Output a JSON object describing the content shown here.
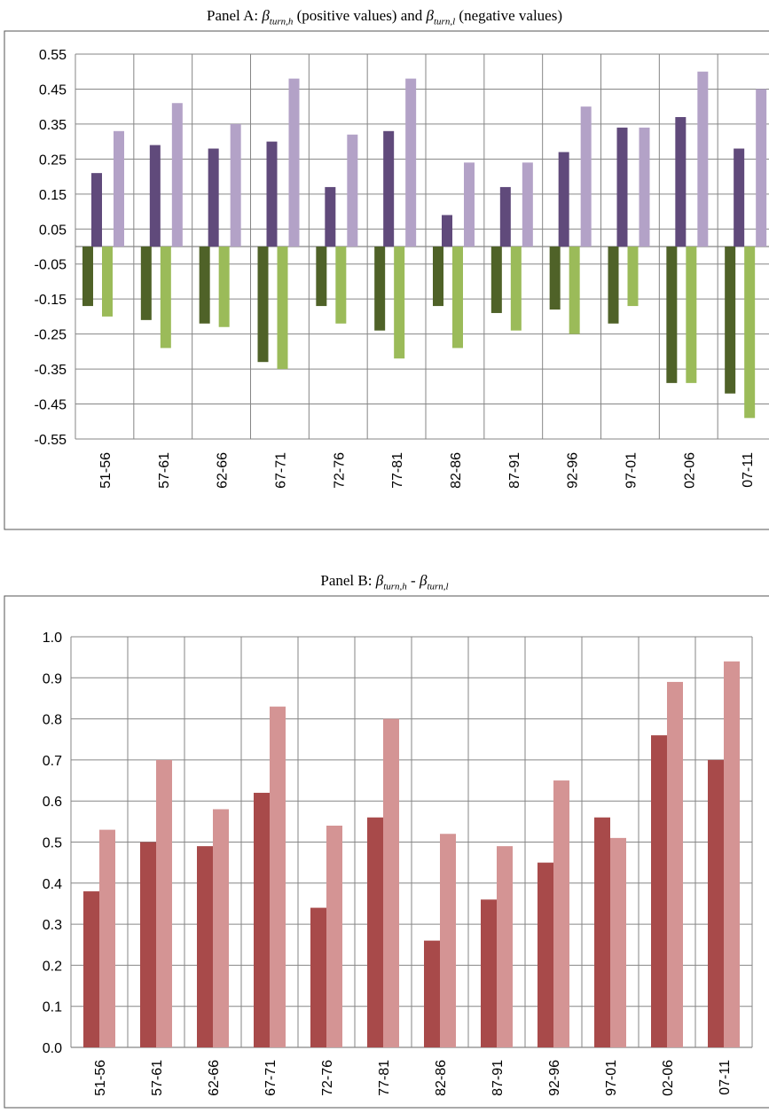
{
  "panels": [
    {
      "title_prefix": "Panel A: ",
      "title_parts": [
        {
          "sym": "β",
          "sub": "turn,h"
        },
        {
          "text": " (positive values) and "
        },
        {
          "sym": "β",
          "sub": "turn,l"
        },
        {
          "text": " (negative values)"
        }
      ]
    },
    {
      "title_prefix": "Panel B: ",
      "title_parts": [
        {
          "sym": "β",
          "sub": "turn,h"
        },
        {
          "text": " - "
        },
        {
          "sym": "β",
          "sub": "turn,l"
        }
      ]
    }
  ],
  "chart_data": [
    {
      "type": "bar",
      "title": "Panel A: βturn,h (positive values) and βturn,l (negative values)",
      "categories": [
        "51-56",
        "57-61",
        "62-66",
        "67-71",
        "72-76",
        "77-81",
        "82-86",
        "87-91",
        "92-96",
        "97-01",
        "02-06",
        "07-11"
      ],
      "ylim": [
        -0.55,
        0.55
      ],
      "yticks": [
        "0.55",
        "0.45",
        "0.35",
        "0.25",
        "0.15",
        "0.05",
        "-0.05",
        "-0.15",
        "-0.25",
        "-0.35",
        "-0.45",
        "-0.55"
      ],
      "grid": true,
      "series": [
        {
          "color": "#4f6228",
          "values": [
            -0.17,
            -0.21,
            -0.22,
            -0.33,
            -0.17,
            -0.24,
            -0.17,
            -0.19,
            -0.18,
            -0.22,
            -0.39,
            -0.42
          ]
        },
        {
          "color": "#9bbb59",
          "values": [
            -0.2,
            -0.29,
            -0.23,
            -0.35,
            -0.22,
            -0.32,
            -0.29,
            -0.24,
            -0.25,
            -0.17,
            -0.39,
            -0.49
          ]
        },
        {
          "color": "#604a7b",
          "values": [
            0.21,
            0.29,
            0.28,
            0.3,
            0.17,
            0.33,
            0.09,
            0.17,
            0.27,
            0.34,
            0.37,
            0.28
          ]
        },
        {
          "color": "#b3a2c7",
          "values": [
            0.33,
            0.41,
            0.35,
            0.48,
            0.32,
            0.48,
            0.24,
            0.24,
            0.4,
            0.34,
            0.5,
            0.45
          ]
        }
      ]
    },
    {
      "type": "bar",
      "title": "Panel B: βturn,h - βturn,l",
      "categories": [
        "51-56",
        "57-61",
        "62-66",
        "67-71",
        "72-76",
        "77-81",
        "82-86",
        "87-91",
        "92-96",
        "97-01",
        "02-06",
        "07-11"
      ],
      "ylim": [
        0.0,
        1.0
      ],
      "yticks": [
        "1.0",
        "0.9",
        "0.8",
        "0.7",
        "0.6",
        "0.5",
        "0.4",
        "0.3",
        "0.2",
        "0.1",
        "0.0"
      ],
      "grid": true,
      "series": [
        {
          "color": "#a84a4a",
          "values": [
            0.38,
            0.5,
            0.49,
            0.62,
            0.34,
            0.56,
            0.26,
            0.36,
            0.45,
            0.56,
            0.76,
            0.7
          ]
        },
        {
          "color": "#d49494",
          "values": [
            0.53,
            0.7,
            0.58,
            0.83,
            0.54,
            0.8,
            0.52,
            0.49,
            0.65,
            0.51,
            0.89,
            0.94
          ]
        }
      ]
    }
  ]
}
